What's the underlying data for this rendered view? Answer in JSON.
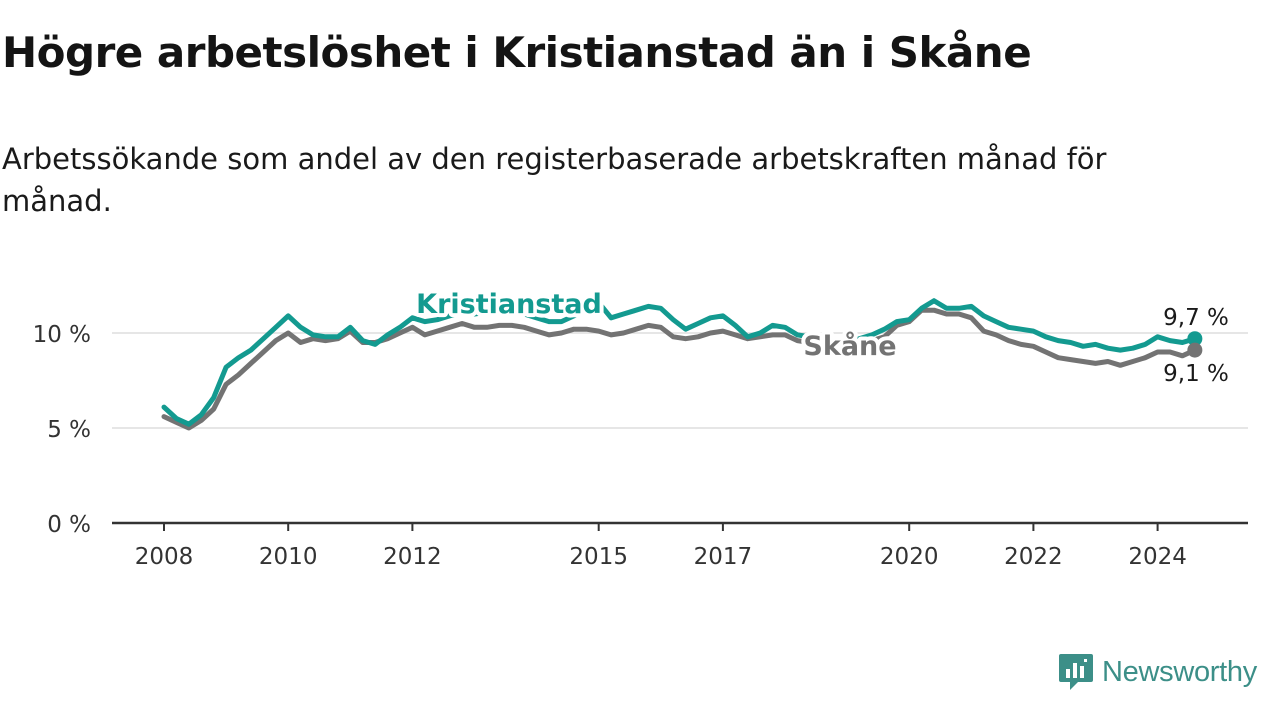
{
  "title": "Högre arbetslöshet i Kristianstad än i Skåne",
  "subtitle": "Arbetssökande som andel av den registerbaserade arbetskraften månad för månad.",
  "brand": {
    "name": "Newsworthy"
  },
  "colors": {
    "kristianstad": "#139a90",
    "skane": "#737373",
    "axis": "#333333",
    "grid": "#dddddd"
  },
  "chart_data": {
    "type": "line",
    "title": "Högre arbetslöshet i Kristianstad än i Skåne",
    "xlabel": "",
    "ylabel": "",
    "xlim": [
      2008,
      2025.6
    ],
    "ylim": [
      0,
      12
    ],
    "grid": true,
    "y_ticks": [
      {
        "value": 0,
        "label": "0 %"
      },
      {
        "value": 5,
        "label": "5 %"
      },
      {
        "value": 10,
        "label": "10 %"
      }
    ],
    "x_ticks": [
      {
        "value": 2008,
        "label": "2008"
      },
      {
        "value": 2010,
        "label": "2010"
      },
      {
        "value": 2012,
        "label": "2012"
      },
      {
        "value": 2015,
        "label": "2015"
      },
      {
        "value": 2017,
        "label": "2017"
      },
      {
        "value": 2020,
        "label": "2020"
      },
      {
        "value": 2022,
        "label": "2022"
      },
      {
        "value": 2024,
        "label": "2024"
      }
    ],
    "series": [
      {
        "name": "Kristianstad",
        "color": "#139a90",
        "end_label": "9,7 %",
        "x": [
          2008,
          2008.2,
          2008.4,
          2008.6,
          2008.8,
          2009,
          2009.2,
          2009.4,
          2009.6,
          2009.8,
          2010,
          2010.2,
          2010.4,
          2010.6,
          2010.8,
          2011,
          2011.2,
          2011.4,
          2011.6,
          2011.8,
          2012,
          2012.2,
          2012.4,
          2012.6,
          2012.8,
          2013,
          2013.2,
          2013.4,
          2013.6,
          2013.8,
          2014,
          2014.2,
          2014.4,
          2014.6,
          2014.8,
          2015,
          2015.2,
          2015.4,
          2015.6,
          2015.8,
          2016,
          2016.2,
          2016.4,
          2016.6,
          2016.8,
          2017,
          2017.2,
          2017.4,
          2017.6,
          2017.8,
          2018,
          2018.2,
          2018.4,
          2018.6,
          2018.8,
          2019,
          2019.2,
          2019.4,
          2019.6,
          2019.8,
          2020,
          2020.2,
          2020.4,
          2020.6,
          2020.8,
          2021,
          2021.2,
          2021.4,
          2021.6,
          2021.8,
          2022,
          2022.2,
          2022.4,
          2022.6,
          2022.8,
          2023,
          2023.2,
          2023.4,
          2023.6,
          2023.8,
          2024,
          2024.2,
          2024.4,
          2024.6
        ],
        "y": [
          6.1,
          5.5,
          5.2,
          5.7,
          6.6,
          8.2,
          8.7,
          9.1,
          9.7,
          10.3,
          10.9,
          10.3,
          9.9,
          9.8,
          9.8,
          10.3,
          9.6,
          9.4,
          9.9,
          10.3,
          10.8,
          10.6,
          10.7,
          10.9,
          11.1,
          11.0,
          11.1,
          11.1,
          11.0,
          11.0,
          10.8,
          10.6,
          10.6,
          10.9,
          11.3,
          11.6,
          10.8,
          11.0,
          11.2,
          11.4,
          11.3,
          10.7,
          10.2,
          10.5,
          10.8,
          10.9,
          10.4,
          9.8,
          10.0,
          10.4,
          10.3,
          9.9,
          9.8,
          9.6,
          9.5,
          9.6,
          9.7,
          9.9,
          10.2,
          10.6,
          10.7,
          11.3,
          11.7,
          11.3,
          11.3,
          11.4,
          10.9,
          10.6,
          10.3,
          10.2,
          10.1,
          9.8,
          9.6,
          9.5,
          9.3,
          9.4,
          9.2,
          9.1,
          9.2,
          9.4,
          9.8,
          9.6,
          9.5,
          9.7
        ]
      },
      {
        "name": "Skåne",
        "color": "#737373",
        "end_label": "9,1 %",
        "x": [
          2008,
          2008.2,
          2008.4,
          2008.6,
          2008.8,
          2009,
          2009.2,
          2009.4,
          2009.6,
          2009.8,
          2010,
          2010.2,
          2010.4,
          2010.6,
          2010.8,
          2011,
          2011.2,
          2011.4,
          2011.6,
          2011.8,
          2012,
          2012.2,
          2012.4,
          2012.6,
          2012.8,
          2013,
          2013.2,
          2013.4,
          2013.6,
          2013.8,
          2014,
          2014.2,
          2014.4,
          2014.6,
          2014.8,
          2015,
          2015.2,
          2015.4,
          2015.6,
          2015.8,
          2016,
          2016.2,
          2016.4,
          2016.6,
          2016.8,
          2017,
          2017.2,
          2017.4,
          2017.6,
          2017.8,
          2018,
          2018.2,
          2018.4,
          2018.6,
          2018.8,
          2019,
          2019.2,
          2019.4,
          2019.6,
          2019.8,
          2020,
          2020.2,
          2020.4,
          2020.6,
          2020.8,
          2021,
          2021.2,
          2021.4,
          2021.6,
          2021.8,
          2022,
          2022.2,
          2022.4,
          2022.6,
          2022.8,
          2023,
          2023.2,
          2023.4,
          2023.6,
          2023.8,
          2024,
          2024.2,
          2024.4,
          2024.6
        ],
        "y": [
          5.6,
          5.3,
          5.0,
          5.4,
          6.0,
          7.3,
          7.8,
          8.4,
          9.0,
          9.6,
          10.0,
          9.5,
          9.7,
          9.6,
          9.7,
          10.1,
          9.5,
          9.5,
          9.7,
          10.0,
          10.3,
          9.9,
          10.1,
          10.3,
          10.5,
          10.3,
          10.3,
          10.4,
          10.4,
          10.3,
          10.1,
          9.9,
          10.0,
          10.2,
          10.2,
          10.1,
          9.9,
          10.0,
          10.2,
          10.4,
          10.3,
          9.8,
          9.7,
          9.8,
          10.0,
          10.1,
          9.9,
          9.7,
          9.8,
          9.9,
          9.9,
          9.6,
          9.5,
          9.4,
          9.3,
          9.3,
          9.4,
          9.6,
          9.8,
          10.4,
          10.6,
          11.2,
          11.2,
          11.0,
          11.0,
          10.8,
          10.1,
          9.9,
          9.6,
          9.4,
          9.3,
          9.0,
          8.7,
          8.6,
          8.5,
          8.4,
          8.5,
          8.3,
          8.5,
          8.7,
          9.0,
          9.0,
          8.8,
          9.1
        ]
      }
    ],
    "annotations": [
      {
        "text": "Kristianstad",
        "series": "Kristianstad",
        "anchor_x": 2014.4,
        "anchor_y": 11.2
      },
      {
        "text": "Skåne",
        "series": "Skåne",
        "anchor_x": 2019.2,
        "anchor_y": 9.3
      }
    ]
  }
}
